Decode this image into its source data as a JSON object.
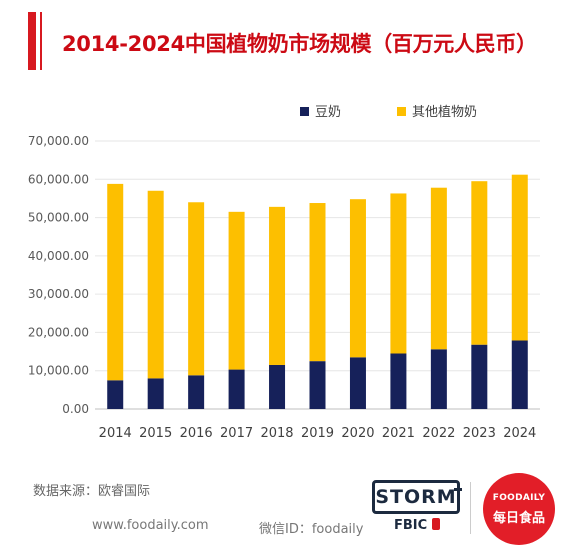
{
  "header": {
    "title": "2014-2024中国植物奶市场规模（百万元人民币）"
  },
  "chart_data": {
    "type": "bar",
    "stacked": true,
    "categories": [
      "2014",
      "2015",
      "2016",
      "2017",
      "2018",
      "2019",
      "2020",
      "2021",
      "2022",
      "2023",
      "2024"
    ],
    "series": [
      {
        "name": "豆奶",
        "color": "#16215a",
        "values": [
          7500,
          8000,
          8800,
          10300,
          11500,
          12500,
          13500,
          14500,
          15600,
          16800,
          17900
        ]
      },
      {
        "name": "其他植物奶",
        "color": "#fdbf00",
        "values": [
          51300,
          49000,
          45200,
          41200,
          41300,
          41300,
          41300,
          41800,
          42200,
          42700,
          43300
        ]
      }
    ],
    "y_ticks": [
      "0.00",
      "10,000.00",
      "20,000.00",
      "30,000.00",
      "40,000.00",
      "50,000.00",
      "60,000.00",
      "70,000.00"
    ],
    "ylim": [
      0,
      70000
    ],
    "grid": true,
    "legend_position": "top-right"
  },
  "footer": {
    "source": "数据来源：欧睿国际",
    "website": "www.foodaily.com",
    "wechat": "微信ID：foodaily"
  },
  "logos": {
    "storm": "STORM",
    "fbic": "FBIC",
    "foodaily_en": "FOODAILY",
    "foodaily_cn": "每日食品"
  }
}
